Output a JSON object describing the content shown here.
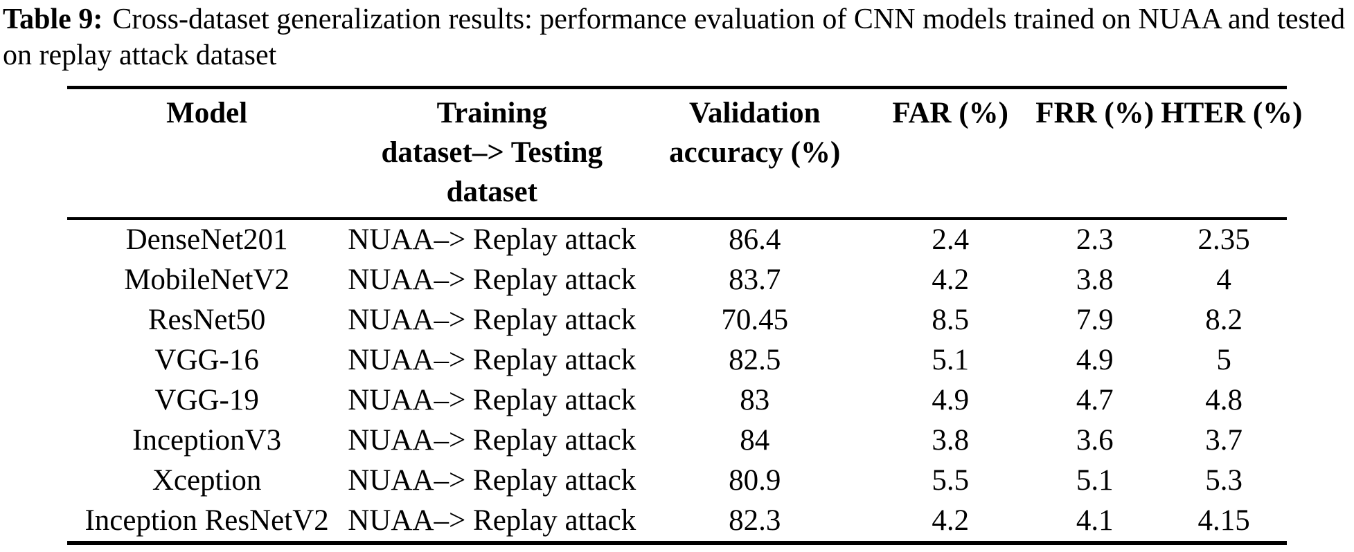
{
  "caption": {
    "label": "Table 9:",
    "text": "Cross-dataset generalization results: performance evaluation of CNN models trained on NUAA and tested on replay attack dataset"
  },
  "table": {
    "columns": [
      "Model",
      "Training\ndataset–> Testing\ndataset",
      "Validation\naccuracy (%)",
      "FAR (%)",
      "FRR (%)",
      "HTER (%)"
    ],
    "rows": [
      {
        "model": "DenseNet201",
        "train_test": "NUAA–> Replay attack",
        "val_acc": "86.4",
        "far": "2.4",
        "frr": "2.3",
        "hter": "2.35"
      },
      {
        "model": "MobileNetV2",
        "train_test": "NUAA–> Replay attack",
        "val_acc": "83.7",
        "far": "4.2",
        "frr": "3.8",
        "hter": "4"
      },
      {
        "model": "ResNet50",
        "train_test": "NUAA–> Replay attack",
        "val_acc": "70.45",
        "far": "8.5",
        "frr": "7.9",
        "hter": "8.2"
      },
      {
        "model": "VGG-16",
        "train_test": "NUAA–> Replay attack",
        "val_acc": "82.5",
        "far": "5.1",
        "frr": "4.9",
        "hter": "5"
      },
      {
        "model": "VGG-19",
        "train_test": "NUAA–> Replay attack",
        "val_acc": "83",
        "far": "4.9",
        "frr": "4.7",
        "hter": "4.8"
      },
      {
        "model": "InceptionV3",
        "train_test": "NUAA–> Replay attack",
        "val_acc": "84",
        "far": "3.8",
        "frr": "3.6",
        "hter": "3.7"
      },
      {
        "model": "Xception",
        "train_test": "NUAA–> Replay attack",
        "val_acc": "80.9",
        "far": "5.5",
        "frr": "5.1",
        "hter": "5.3"
      },
      {
        "model": "Inception ResNetV2",
        "train_test": "NUAA–> Replay attack",
        "val_acc": "82.3",
        "far": "4.2",
        "frr": "4.1",
        "hter": "4.15"
      }
    ]
  }
}
